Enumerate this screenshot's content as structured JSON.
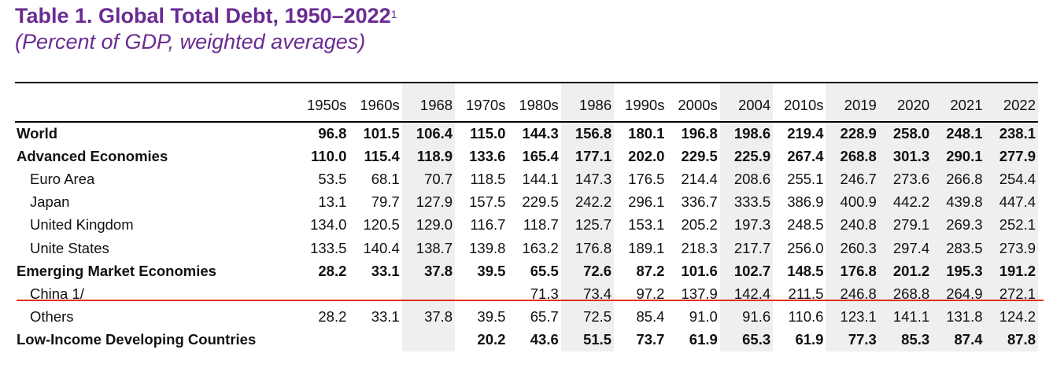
{
  "title": {
    "main": "Table 1. Global Total Debt, 1950–2022",
    "footnote_marker": "1",
    "subtitle": "(Percent of GDP, weighted averages)"
  },
  "colors": {
    "title": "#6a2c91",
    "shading": "#efefef",
    "highlight_line": "#e0301e"
  },
  "table": {
    "columns": [
      "1950s",
      "1960s",
      "1968",
      "1970s",
      "1980s",
      "1986",
      "1990s",
      "2000s",
      "2004",
      "2010s",
      "2019",
      "2020",
      "2021",
      "2022"
    ],
    "rows": [
      {
        "label": "World",
        "bold": true,
        "indent": false,
        "values": [
          "96.8",
          "101.5",
          "106.4",
          "115.0",
          "144.3",
          "156.8",
          "180.1",
          "196.8",
          "198.6",
          "219.4",
          "228.9",
          "258.0",
          "248.1",
          "238.1"
        ]
      },
      {
        "label": "Advanced Economies",
        "bold": true,
        "indent": false,
        "values": [
          "110.0",
          "115.4",
          "118.9",
          "133.6",
          "165.4",
          "177.1",
          "202.0",
          "229.5",
          "225.9",
          "267.4",
          "268.8",
          "301.3",
          "290.1",
          "277.9"
        ]
      },
      {
        "label": "Euro Area",
        "bold": false,
        "indent": true,
        "values": [
          "53.5",
          "68.1",
          "70.7",
          "118.5",
          "144.1",
          "147.3",
          "176.5",
          "214.4",
          "208.6",
          "255.1",
          "246.7",
          "273.6",
          "266.8",
          "254.4"
        ]
      },
      {
        "label": "Japan",
        "bold": false,
        "indent": true,
        "values": [
          "13.1",
          "79.7",
          "127.9",
          "157.5",
          "229.5",
          "242.2",
          "296.1",
          "336.7",
          "333.5",
          "386.9",
          "400.9",
          "442.2",
          "439.8",
          "447.4"
        ]
      },
      {
        "label": "United Kingdom",
        "bold": false,
        "indent": true,
        "values": [
          "134.0",
          "120.5",
          "129.0",
          "116.7",
          "118.7",
          "125.7",
          "153.1",
          "205.2",
          "197.3",
          "248.5",
          "240.8",
          "279.1",
          "269.3",
          "252.1"
        ]
      },
      {
        "label": "Unite States",
        "bold": false,
        "indent": true,
        "values": [
          "133.5",
          "140.4",
          "138.7",
          "139.8",
          "163.2",
          "176.8",
          "189.1",
          "218.3",
          "217.7",
          "256.0",
          "260.3",
          "297.4",
          "283.5",
          "273.9"
        ]
      },
      {
        "label": "Emerging Market Economies",
        "bold": true,
        "indent": false,
        "values": [
          "28.2",
          "33.1",
          "37.8",
          "39.5",
          "65.5",
          "72.6",
          "87.2",
          "101.6",
          "102.7",
          "148.5",
          "176.8",
          "201.2",
          "195.3",
          "191.2"
        ]
      },
      {
        "label": "China 1/",
        "bold": false,
        "indent": true,
        "values": [
          "",
          "",
          "",
          "",
          "71.3",
          "73.4",
          "97.2",
          "137.9",
          "142.4",
          "211.5",
          "246.8",
          "268.8",
          "264.9",
          "272.1"
        ]
      },
      {
        "label": "Others",
        "bold": false,
        "indent": true,
        "values": [
          "28.2",
          "33.1",
          "37.8",
          "39.5",
          "65.7",
          "72.5",
          "85.4",
          "91.0",
          "91.6",
          "110.6",
          "123.1",
          "141.1",
          "131.8",
          "124.2"
        ]
      },
      {
        "label": "Low-Income Developing Countries",
        "bold": true,
        "indent": false,
        "values": [
          "",
          "",
          "",
          "20.2",
          "43.6",
          "51.5",
          "73.7",
          "61.9",
          "65.3",
          "61.9",
          "77.3",
          "85.3",
          "87.4",
          "87.8"
        ]
      }
    ]
  }
}
